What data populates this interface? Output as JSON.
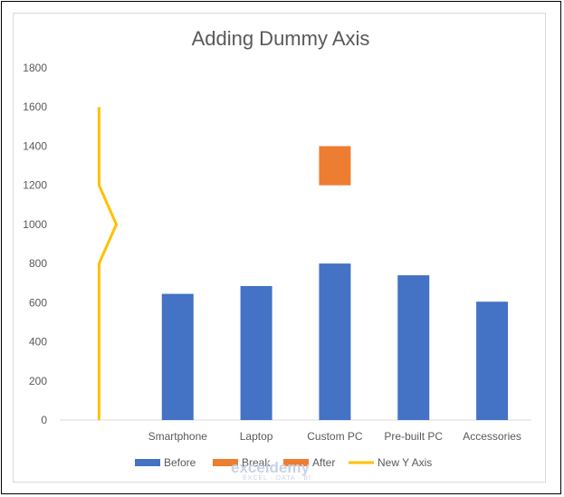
{
  "chart_data": {
    "type": "bar",
    "title": "Adding Dummy Axis",
    "xlabel": "",
    "ylabel": "",
    "ylim": [
      0,
      1800
    ],
    "yticks": [
      0,
      200,
      400,
      600,
      800,
      1000,
      1200,
      1400,
      1600,
      1800
    ],
    "grid": false,
    "categories": [
      "",
      "Smartphone",
      "Laptop",
      "Custom PC",
      "Pre-built PC",
      "Accessories"
    ],
    "series": [
      {
        "name": "Before",
        "kind": "bar",
        "color": "#4472c4",
        "values": [
          null,
          645,
          685,
          800,
          740,
          605
        ]
      },
      {
        "name": "Break",
        "kind": "bar-stacked",
        "color": "#ed7d31",
        "values": [
          null,
          null,
          null,
          null,
          null,
          null
        ]
      },
      {
        "name": "After",
        "kind": "bar-stacked",
        "color": "#ed7d31",
        "values": [
          null,
          null,
          null,
          200,
          null,
          null
        ]
      },
      {
        "name": "New Y Axis",
        "kind": "line",
        "color": "#ffc000",
        "points": [
          [
            0,
            0
          ],
          [
            0,
            800
          ],
          [
            0.22,
            1000
          ],
          [
            0,
            1200
          ],
          [
            0,
            1600
          ]
        ]
      }
    ],
    "after_base": 1200,
    "legend": {
      "position": "bottom",
      "entries": [
        "Before",
        "Break",
        "After",
        "New Y Axis"
      ]
    }
  },
  "watermark": {
    "name": "exceldemy",
    "sub": "EXCEL · DATA · BI"
  }
}
